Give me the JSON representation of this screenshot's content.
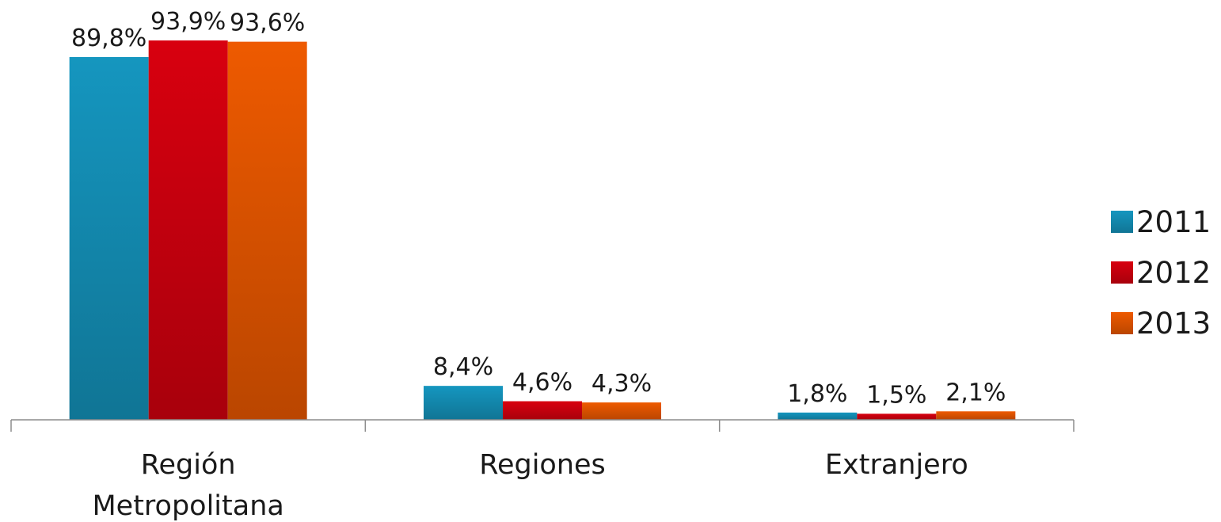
{
  "chart_data": {
    "type": "bar",
    "categories": [
      "Región\nMetropolitana",
      "Regiones",
      "Extranjero"
    ],
    "series": [
      {
        "name": "2011",
        "values": [
          89.8,
          8.4,
          1.8
        ],
        "labels": [
          "89,8%",
          "8,4%",
          "1,8%"
        ],
        "color": "#1596bf"
      },
      {
        "name": "2012",
        "values": [
          93.9,
          4.6,
          1.5
        ],
        "labels": [
          "93,9%",
          "4,6%",
          "1,5%"
        ],
        "color": "#d8000f"
      },
      {
        "name": "2013",
        "values": [
          93.6,
          4.3,
          2.1
        ],
        "labels": [
          "93,6%",
          "4,3%",
          "2,1%"
        ],
        "color": "#ee5a00"
      }
    ],
    "ylim": [
      0,
      100
    ],
    "grid": false,
    "legend": "right"
  }
}
